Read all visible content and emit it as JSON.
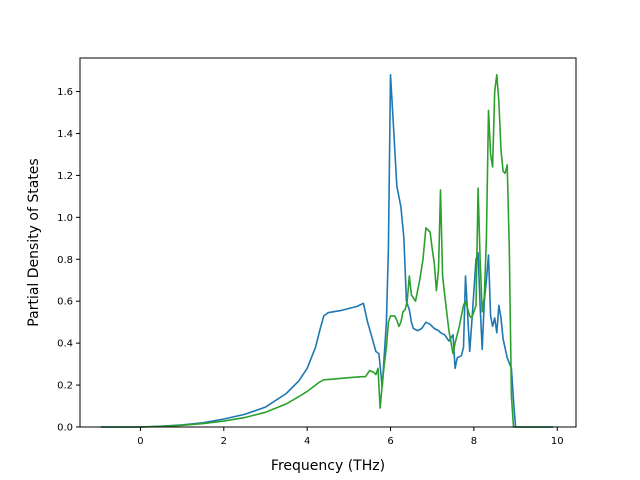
{
  "chart_data": {
    "type": "line",
    "title": "",
    "xlabel": "Frequency (THz)",
    "ylabel": "Partial Density of States",
    "xlim": [
      -1.45,
      10.45
    ],
    "ylim": [
      0.0,
      1.76
    ],
    "xticks": [
      0,
      2,
      4,
      6,
      8,
      10
    ],
    "xtick_labels": [
      "0",
      "2",
      "4",
      "6",
      "8",
      "10"
    ],
    "yticks": [
      0.0,
      0.2,
      0.4,
      0.6,
      0.8,
      1.0,
      1.2,
      1.4,
      1.6
    ],
    "ytick_labels": [
      "0.0",
      "0.2",
      "0.4",
      "0.6",
      "0.8",
      "1.0",
      "1.2",
      "1.4",
      "1.6"
    ],
    "grid": false,
    "legend": false,
    "series": [
      {
        "color": "#1f77b4",
        "x": [
          -0.95,
          0.0,
          0.5,
          1.0,
          1.5,
          2.0,
          2.5,
          3.0,
          3.5,
          3.8,
          4.0,
          4.2,
          4.3,
          4.4,
          4.5,
          4.8,
          5.0,
          5.2,
          5.35,
          5.45,
          5.55,
          5.65,
          5.72,
          5.8,
          5.9,
          5.95,
          6.0,
          6.08,
          6.15,
          6.25,
          6.32,
          6.38,
          6.45,
          6.5,
          6.55,
          6.65,
          6.75,
          6.85,
          6.95,
          7.05,
          7.15,
          7.2,
          7.3,
          7.4,
          7.5,
          7.55,
          7.6,
          7.7,
          7.75,
          7.8,
          7.9,
          7.95,
          8.05,
          8.1,
          8.15,
          8.2,
          8.25,
          8.3,
          8.35,
          8.4,
          8.45,
          8.5,
          8.55,
          8.6,
          8.65,
          8.7,
          8.8,
          8.9,
          8.96,
          9.0,
          9.2,
          9.5,
          9.9
        ],
        "y": [
          0.0,
          0.0,
          0.004,
          0.01,
          0.02,
          0.038,
          0.06,
          0.095,
          0.16,
          0.22,
          0.28,
          0.38,
          0.46,
          0.53,
          0.545,
          0.555,
          0.565,
          0.575,
          0.59,
          0.5,
          0.43,
          0.36,
          0.35,
          0.19,
          0.5,
          0.85,
          1.68,
          1.4,
          1.15,
          1.05,
          0.9,
          0.6,
          0.56,
          0.5,
          0.47,
          0.46,
          0.47,
          0.5,
          0.49,
          0.47,
          0.46,
          0.45,
          0.44,
          0.41,
          0.44,
          0.28,
          0.33,
          0.34,
          0.38,
          0.72,
          0.36,
          0.5,
          0.8,
          0.83,
          0.58,
          0.37,
          0.6,
          0.7,
          0.82,
          0.53,
          0.48,
          0.52,
          0.45,
          0.58,
          0.52,
          0.42,
          0.33,
          0.28,
          0.1,
          0.0,
          0.0,
          0.0,
          0.0
        ]
      },
      {
        "color": "#2ca02c",
        "x": [
          -0.95,
          0.0,
          0.5,
          1.0,
          1.5,
          2.0,
          2.5,
          3.0,
          3.5,
          3.8,
          4.0,
          4.2,
          4.3,
          4.4,
          4.6,
          5.0,
          5.3,
          5.4,
          5.5,
          5.6,
          5.65,
          5.7,
          5.75,
          5.8,
          5.85,
          5.9,
          5.95,
          6.0,
          6.05,
          6.1,
          6.15,
          6.2,
          6.25,
          6.3,
          6.35,
          6.4,
          6.45,
          6.5,
          6.6,
          6.7,
          6.78,
          6.85,
          6.95,
          7.0,
          7.05,
          7.1,
          7.15,
          7.2,
          7.25,
          7.3,
          7.4,
          7.5,
          7.55,
          7.65,
          7.75,
          7.8,
          7.9,
          7.95,
          8.05,
          8.1,
          8.15,
          8.2,
          8.25,
          8.3,
          8.35,
          8.4,
          8.45,
          8.5,
          8.55,
          8.6,
          8.65,
          8.7,
          8.75,
          8.8,
          8.85,
          8.9,
          8.95,
          9.0,
          9.2,
          9.9
        ],
        "y": [
          0.0,
          0.0,
          0.003,
          0.008,
          0.016,
          0.028,
          0.045,
          0.07,
          0.11,
          0.145,
          0.17,
          0.2,
          0.215,
          0.225,
          0.228,
          0.235,
          0.24,
          0.24,
          0.27,
          0.26,
          0.25,
          0.28,
          0.09,
          0.2,
          0.3,
          0.38,
          0.5,
          0.53,
          0.53,
          0.53,
          0.51,
          0.48,
          0.5,
          0.55,
          0.56,
          0.6,
          0.72,
          0.63,
          0.6,
          0.7,
          0.8,
          0.95,
          0.93,
          0.85,
          0.78,
          0.65,
          0.75,
          1.13,
          0.72,
          0.63,
          0.46,
          0.35,
          0.4,
          0.48,
          0.58,
          0.6,
          0.53,
          0.52,
          0.58,
          1.14,
          0.8,
          0.55,
          0.62,
          0.9,
          1.51,
          1.3,
          1.24,
          1.6,
          1.68,
          1.55,
          1.32,
          1.22,
          1.21,
          1.25,
          0.85,
          0.15,
          0.0,
          0.0,
          0.0,
          0.0
        ]
      }
    ]
  }
}
